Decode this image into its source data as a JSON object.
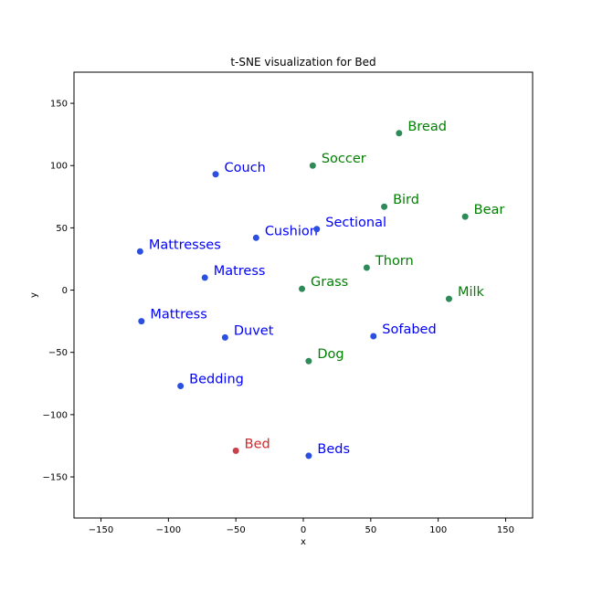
{
  "chart_data": {
    "type": "scatter",
    "title": "t-SNE visualization for Bed",
    "xlabel": "x",
    "ylabel": "y",
    "xlim": [
      -170,
      170
    ],
    "ylim": [
      -183,
      175
    ],
    "xticks": [
      -150,
      -100,
      -50,
      0,
      50,
      100,
      150
    ],
    "yticks": [
      -150,
      -100,
      -50,
      0,
      50,
      100,
      150
    ],
    "tick_labels_x": [
      "−150",
      "−100",
      "−50",
      "0",
      "50",
      "100",
      "150"
    ],
    "tick_labels_y": [
      "−150",
      "−100",
      "−50",
      "0",
      "50",
      "100",
      "150"
    ],
    "grid": false,
    "colors": {
      "query": "#d62728",
      "similar": "#0000ff",
      "dissimilar": "#008000",
      "similar_marker": "#2b4fe0",
      "dissimilar_marker": "#2e8b57",
      "query_marker": "#c8414b"
    },
    "points": [
      {
        "label": "Bed",
        "x": -50,
        "y": -129,
        "group": "query"
      },
      {
        "label": "Beds",
        "x": 4,
        "y": -133,
        "group": "similar"
      },
      {
        "label": "Bedding",
        "x": -91,
        "y": -77,
        "group": "similar"
      },
      {
        "label": "Duvet",
        "x": -58,
        "y": -38,
        "group": "similar"
      },
      {
        "label": "Mattress",
        "x": -120,
        "y": -25,
        "group": "similar"
      },
      {
        "label": "Matress",
        "x": -73,
        "y": 10,
        "group": "similar"
      },
      {
        "label": "Mattresses",
        "x": -121,
        "y": 31,
        "group": "similar"
      },
      {
        "label": "Cushion",
        "x": -35,
        "y": 42,
        "group": "similar"
      },
      {
        "label": "Sectional",
        "x": 10,
        "y": 49,
        "group": "similar"
      },
      {
        "label": "Couch",
        "x": -65,
        "y": 93,
        "group": "similar"
      },
      {
        "label": "Sofabed",
        "x": 52,
        "y": -37,
        "group": "similar"
      },
      {
        "label": "Dog",
        "x": 4,
        "y": -57,
        "group": "dissimilar"
      },
      {
        "label": "Grass",
        "x": -1,
        "y": 1,
        "group": "dissimilar"
      },
      {
        "label": "Thorn",
        "x": 47,
        "y": 18,
        "group": "dissimilar"
      },
      {
        "label": "Milk",
        "x": 108,
        "y": -7,
        "group": "dissimilar"
      },
      {
        "label": "Bird",
        "x": 60,
        "y": 67,
        "group": "dissimilar"
      },
      {
        "label": "Bear",
        "x": 120,
        "y": 59,
        "group": "dissimilar"
      },
      {
        "label": "Soccer",
        "x": 7,
        "y": 100,
        "group": "dissimilar"
      },
      {
        "label": "Bread",
        "x": 71,
        "y": 126,
        "group": "dissimilar"
      }
    ]
  }
}
